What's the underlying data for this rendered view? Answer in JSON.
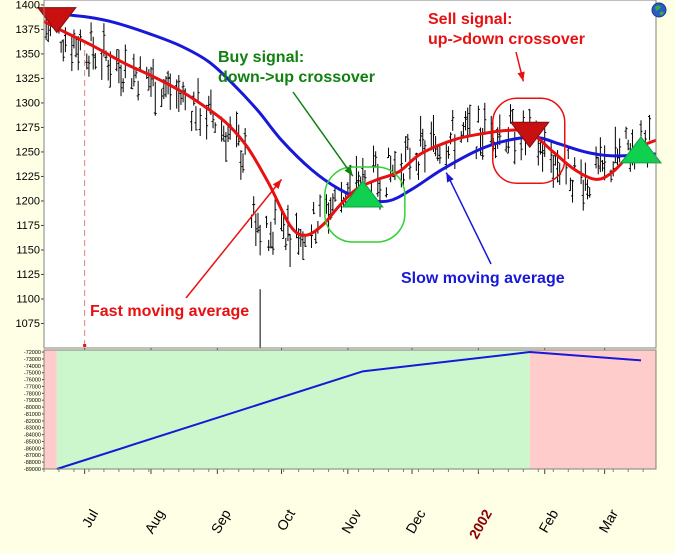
{
  "chart_data": [
    {
      "type": "line",
      "panel": "price",
      "y_ticks": [
        1075,
        1100,
        1125,
        1150,
        1175,
        1200,
        1225,
        1250,
        1275,
        1300,
        1325,
        1350,
        1375,
        1400
      ],
      "ylim": [
        1050,
        1405
      ],
      "x_months": [
        {
          "label": "Jul",
          "date": "2001-07-01",
          "emphasis": false
        },
        {
          "label": "Aug",
          "date": "2001-08-01",
          "emphasis": false
        },
        {
          "label": "Sep",
          "date": "2001-09-01",
          "emphasis": false
        },
        {
          "label": "Oct",
          "date": "2001-10-01",
          "emphasis": false
        },
        {
          "label": "Nov",
          "date": "2001-11-01",
          "emphasis": false
        },
        {
          "label": "Dec",
          "date": "2001-12-01",
          "emphasis": false
        },
        {
          "label": "2002",
          "date": "2002-01-01",
          "emphasis": true
        },
        {
          "label": "Feb",
          "date": "2002-02-01",
          "emphasis": false
        },
        {
          "label": "Mar",
          "date": "2002-03-01",
          "emphasis": false
        }
      ],
      "x_range": [
        "2001-06-12",
        "2002-03-25"
      ],
      "bar_color": "#000000",
      "series": [
        {
          "name": "Fast moving average",
          "color": "#e81010",
          "points": [
            [
              "2001-06-12",
              1383
            ],
            [
              "2001-06-22",
              1372
            ],
            [
              "2001-07-05",
              1358
            ],
            [
              "2001-07-20",
              1340
            ],
            [
              "2001-08-01",
              1328
            ],
            [
              "2001-08-15",
              1312
            ],
            [
              "2001-08-25",
              1298
            ],
            [
              "2001-09-05",
              1280
            ],
            [
              "2001-09-15",
              1255
            ],
            [
              "2001-09-25",
              1218
            ],
            [
              "2001-10-05",
              1175
            ],
            [
              "2001-10-12",
              1165
            ],
            [
              "2001-10-20",
              1175
            ],
            [
              "2001-10-28",
              1195
            ],
            [
              "2001-11-05",
              1212
            ],
            [
              "2001-11-15",
              1222
            ],
            [
              "2001-11-25",
              1230
            ],
            [
              "2001-12-05",
              1248
            ],
            [
              "2001-12-20",
              1262
            ],
            [
              "2002-01-01",
              1268
            ],
            [
              "2002-01-15",
              1272
            ],
            [
              "2002-01-25",
              1270
            ],
            [
              "2002-02-05",
              1250
            ],
            [
              "2002-02-15",
              1232
            ],
            [
              "2002-02-25",
              1222
            ],
            [
              "2002-03-05",
              1230
            ],
            [
              "2002-03-15",
              1252
            ],
            [
              "2002-03-25",
              1262
            ]
          ]
        },
        {
          "name": "Slow moving average",
          "color": "#1818d8",
          "points": [
            [
              "2001-06-12",
              1392
            ],
            [
              "2001-07-01",
              1388
            ],
            [
              "2001-07-15",
              1382
            ],
            [
              "2001-08-01",
              1370
            ],
            [
              "2001-08-15",
              1358
            ],
            [
              "2001-08-28",
              1342
            ],
            [
              "2001-09-08",
              1320
            ],
            [
              "2001-09-20",
              1292
            ],
            [
              "2001-10-01",
              1262
            ],
            [
              "2001-10-15",
              1232
            ],
            [
              "2001-10-28",
              1212
            ],
            [
              "2001-11-08",
              1202
            ],
            [
              "2001-11-20",
              1200
            ],
            [
              "2001-12-01",
              1212
            ],
            [
              "2001-12-15",
              1232
            ],
            [
              "2002-01-01",
              1252
            ],
            [
              "2002-01-15",
              1262
            ],
            [
              "2002-01-28",
              1265
            ],
            [
              "2002-02-08",
              1258
            ],
            [
              "2002-02-20",
              1250
            ],
            [
              "2002-03-05",
              1246
            ],
            [
              "2002-03-25",
              1248
            ]
          ]
        }
      ],
      "signals": [
        {
          "kind": "sell",
          "date": "2001-06-18",
          "value": 1385,
          "color": "#c81010",
          "marker": "down-triangle"
        },
        {
          "kind": "buy",
          "date": "2001-11-08",
          "value": 1203,
          "color": "#10d050",
          "marker": "up-triangle"
        },
        {
          "kind": "sell",
          "date": "2002-01-25",
          "value": 1268,
          "color": "#c81010",
          "marker": "down-triangle"
        },
        {
          "kind": "buy",
          "date": "2002-03-18",
          "value": 1248,
          "color": "#10d050",
          "marker": "up-triangle"
        }
      ],
      "annotations": [
        {
          "key": "buy_signal",
          "lines": [
            "Buy signal:",
            "down->up crossover"
          ],
          "color": "#108010"
        },
        {
          "key": "sell_signal",
          "lines": [
            "Sell signal:",
            "up->down crossover"
          ],
          "color": "#e81010"
        },
        {
          "key": "fast_ma",
          "lines": [
            "Fast moving average"
          ],
          "color": "#e81010"
        },
        {
          "key": "slow_ma",
          "lines": [
            "Slow moving average"
          ],
          "color": "#1818d8"
        }
      ]
    },
    {
      "type": "line",
      "panel": "equity",
      "y_ticks": [
        -72000,
        -73000,
        -74000,
        -75000,
        -76000,
        -77000,
        -78000,
        -79000,
        -80000,
        -81000,
        -82000,
        -83000,
        -84000,
        -85000,
        -86000,
        -87000,
        -88000,
        -89000
      ],
      "ylim": [
        -89000,
        -71700
      ],
      "series": [
        {
          "color": "#1818d8",
          "points": [
            [
              "2001-06-18",
              -89000
            ],
            [
              "2001-11-08",
              -74800
            ],
            [
              "2002-01-25",
              -72000
            ],
            [
              "2002-03-18",
              -73200
            ]
          ]
        }
      ],
      "regions": [
        {
          "from": "2001-06-12",
          "to": "2001-06-18",
          "color": "#ffcccc"
        },
        {
          "from": "2001-06-18",
          "to": "2002-01-25",
          "color": "#ccf7cc"
        },
        {
          "from": "2002-01-25",
          "to": "2002-03-25",
          "color": "#ffcccc"
        }
      ]
    }
  ],
  "corner_icon": "globe-icon"
}
